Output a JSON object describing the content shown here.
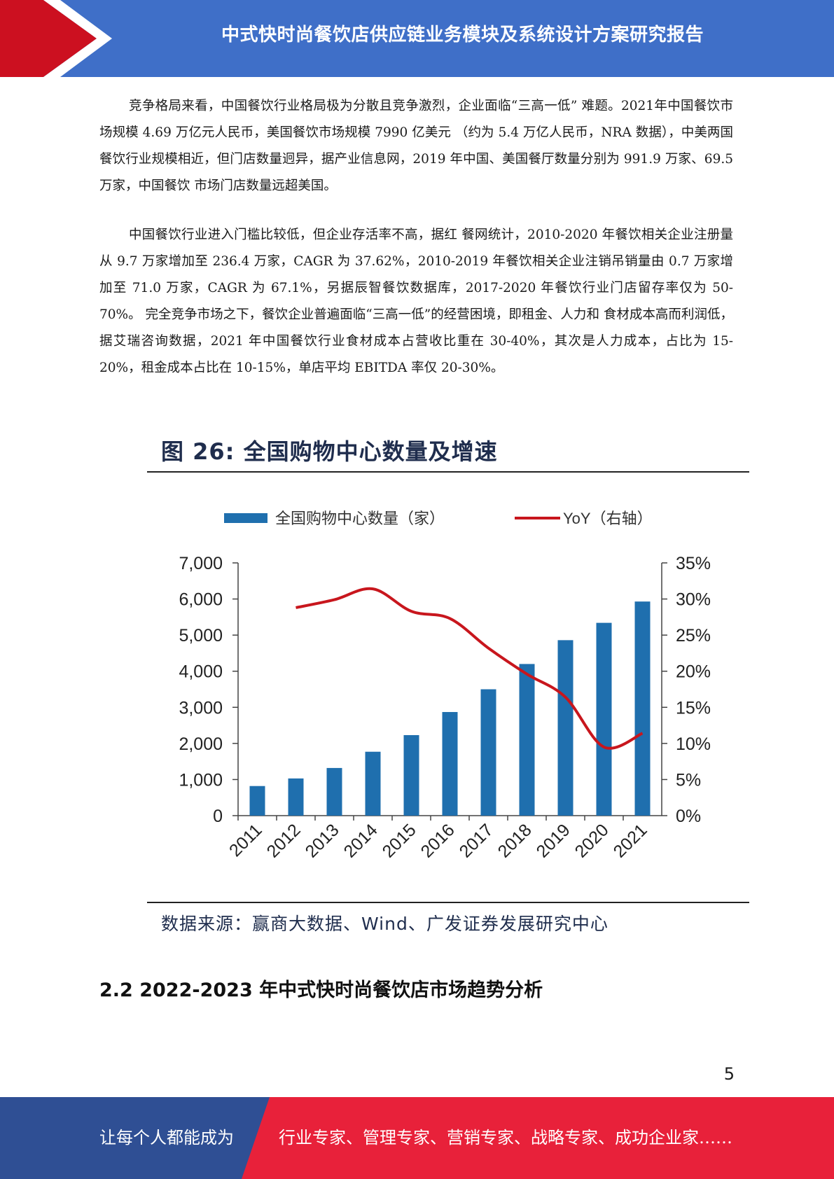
{
  "header": {
    "title": "中式快时尚餐饮店供应链业务模块及系统设计方案研究报告",
    "colors": {
      "blue": "#3f6fc8",
      "red": "#cc1020"
    }
  },
  "paragraphs": [
    "竞争格局来看，中国餐饮行业格局极为分散且竞争激烈，企业面临“三高一低” 难题。2021年中国餐饮市场规模 4.69 万亿元人民币，美国餐饮市场规模 7990 亿美元 （约为 5.4 万亿人民币，NRA 数据），中美两国餐饮行业规模相近，但门店数量迥异，据产业信息网，2019 年中国、美国餐厅数量分别为 991.9 万家、69.5 万家，中国餐饮 市场门店数量远超美国。",
    "中国餐饮行业进入门槛比较低，但企业存活率不高，据红 餐网统计，2010-2020 年餐饮相关企业注册量从 9.7 万家增加至 236.4 万家，CAGR 为 37.62%，2010-2019 年餐饮相关企业注销吊销量由 0.7 万家增加至 71.0 万家，CAGR 为 67.1%，另据辰智餐饮数据库，2017-2020 年餐饮行业门店留存率仅为 50-70%。 完全竞争市场之下，餐饮企业普遍面临“三高一低”的经营困境，即租金、人力和 食材成本高而利润低，据艾瑞咨询数据，2021 年中国餐饮行业食材成本占营收比重在 30-40%，其次是人力成本，占比为 15-20%，租金成本占比在 10-15%，单店平均 EBITDA 率仅 20-30%。"
  ],
  "figure": {
    "title": "图  26:  全国购物中心数量及增速",
    "source": "数据来源：赢商大数据、Wind、广发证券发展研究中心"
  },
  "chart_data": {
    "type": "bar",
    "categories": [
      "2011",
      "2012",
      "2013",
      "2014",
      "2015",
      "2016",
      "2017",
      "2018",
      "2019",
      "2020",
      "2021"
    ],
    "series": [
      {
        "name": "全国购物中心数量（家）",
        "type": "bar",
        "axis": "left",
        "color": "#1f6fae",
        "values": [
          820,
          1030,
          1320,
          1770,
          2230,
          2870,
          3500,
          4200,
          4860,
          5340,
          5930
        ]
      },
      {
        "name": "YoY（右轴）",
        "type": "line",
        "axis": "right",
        "color": "#c8161d",
        "values": [
          null,
          28.8,
          29.9,
          31.4,
          28.3,
          27.3,
          23.2,
          19.6,
          16.4,
          9.5,
          11.4
        ]
      }
    ],
    "y_left": {
      "range": [
        0,
        7000
      ],
      "ticks": [
        "0",
        "1,000",
        "2,000",
        "3,000",
        "4,000",
        "5,000",
        "6,000",
        "7,000"
      ]
    },
    "y_right": {
      "range": [
        0,
        35
      ],
      "ticks": [
        "0%",
        "5%",
        "10%",
        "15%",
        "20%",
        "25%",
        "30%",
        "35%"
      ]
    },
    "legend_placement": "top",
    "grid": false
  },
  "section_heading": "2.2 2022-2023 年中式快时尚餐饮店市场趋势分析",
  "page_number": "5",
  "footer": {
    "left_text": "让每个人都能成为",
    "right_text": "行业专家、管理专家、营销专家、战略专家、成功企业家……",
    "colors": {
      "blue": "#2f4f94",
      "red": "#e8213a"
    }
  }
}
